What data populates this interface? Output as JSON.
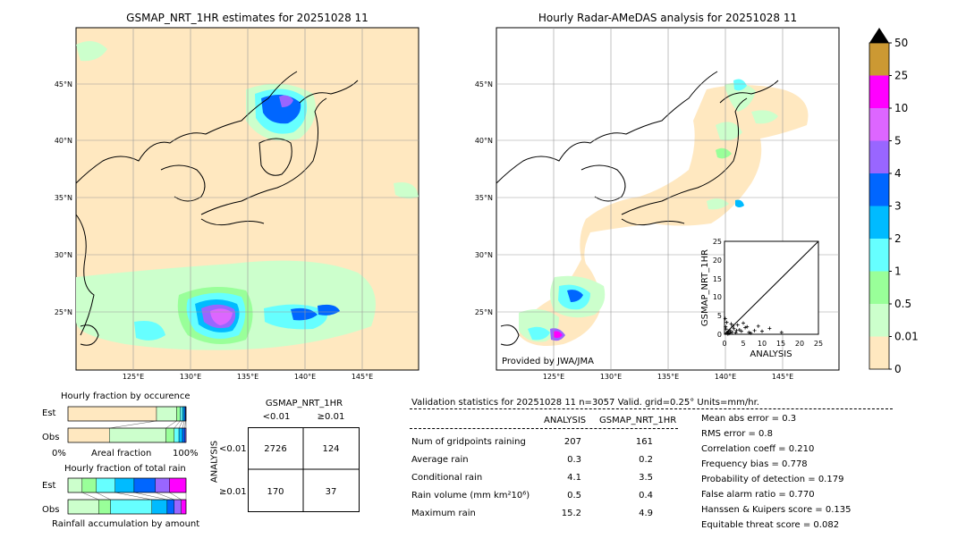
{
  "titles": {
    "gsmap": "GSMAP_NRT_1HR estimates for 20251028 11",
    "radar": "Hourly Radar-AMeDAS analysis for 20251028 11",
    "provided": "Provided by JWA/JMA"
  },
  "map_axes": {
    "lat_ticks": [
      "45°N",
      "40°N",
      "35°N",
      "30°N",
      "25°N"
    ],
    "lon_ticks": [
      "125°E",
      "130°E",
      "135°E",
      "140°E",
      "145°E"
    ]
  },
  "colorbar": {
    "labels": [
      "50",
      "25",
      "10",
      "5",
      "4",
      "3",
      "2",
      "1",
      "0.5",
      "0.01",
      "0"
    ],
    "colors": [
      "#cc9933",
      "#ff00ff",
      "#dd66ff",
      "#9966ff",
      "#0066ff",
      "#00bbff",
      "#66ffff",
      "#99ff99",
      "#ccffcc",
      "#ffe8c0"
    ],
    "over_color": "#000000"
  },
  "scatter": {
    "xlabel": "ANALYSIS",
    "ylabel": "GSMAP_NRT_1HR",
    "ticks": [
      "0",
      "5",
      "10",
      "15",
      "20",
      "25"
    ]
  },
  "fraction_occurrence": {
    "title": "Hourly fraction by occurence",
    "est_label": "Est",
    "obs_label": "Obs",
    "axis_left": "0%",
    "axis_mid": "Areal fraction",
    "axis_right": "100%"
  },
  "fraction_total": {
    "title": "Hourly fraction of total rain",
    "est_label": "Est",
    "obs_label": "Obs",
    "axis_label": "Rainfall accumulation by amount"
  },
  "contingency": {
    "title": "GSMAP_NRT_1HR",
    "col_lt": "<0.01",
    "col_ge": "≥0.01",
    "row_lt": "<0.01",
    "row_ge": "≥0.01",
    "ylabel": "ANALYSIS",
    "cells": [
      "2726",
      "124",
      "170",
      "37"
    ]
  },
  "validation": {
    "header": "Validation statistics for 20251028 11  n=3057 Valid. grid=0.25° Units=mm/hr.",
    "col_analysis": "ANALYSIS",
    "col_gsmap": "GSMAP_NRT_1HR",
    "rows": [
      {
        "label": "Num of gridpoints raining",
        "analysis": "207",
        "gsmap": "161"
      },
      {
        "label": "Average rain",
        "analysis": "0.3",
        "gsmap": "0.2"
      },
      {
        "label": "Conditional rain",
        "analysis": "4.1",
        "gsmap": "3.5"
      },
      {
        "label": "Rain volume (mm km²10⁶)",
        "analysis": "0.5",
        "gsmap": "0.4"
      },
      {
        "label": "Maximum rain",
        "analysis": "15.2",
        "gsmap": "4.9"
      }
    ],
    "scores": [
      "Mean abs error =    0.3",
      "RMS error =    0.8",
      "Correlation coeff =  0.210",
      "Frequency bias =  0.778",
      "Probability of detection =  0.179",
      "False alarm ratio =  0.770",
      "Hanssen & Kuipers score =  0.135",
      "Equitable threat score =  0.082"
    ]
  },
  "chart_data": [
    {
      "type": "scatter",
      "xlabel": "ANALYSIS",
      "ylabel": "GSMAP_NRT_1HR",
      "xlim": [
        0,
        25
      ],
      "ylim": [
        0,
        25
      ],
      "points": [
        [
          0.5,
          0.3
        ],
        [
          0.8,
          0.5
        ],
        [
          1.0,
          0.8
        ],
        [
          1.2,
          0.2
        ],
        [
          1.5,
          1.0
        ],
        [
          2.0,
          0.6
        ],
        [
          2.5,
          1.5
        ],
        [
          3.0,
          0.4
        ],
        [
          3.5,
          2.5
        ],
        [
          4.0,
          1.2
        ],
        [
          4.5,
          0.8
        ],
        [
          5.0,
          3.0
        ],
        [
          5.5,
          1.8
        ],
        [
          6.0,
          2.0
        ],
        [
          6.5,
          0.5
        ],
        [
          8.0,
          1.0
        ],
        [
          10.0,
          0.8
        ],
        [
          12.0,
          1.6
        ],
        [
          15.2,
          0.5
        ],
        [
          0.3,
          2.0
        ],
        [
          0.6,
          3.2
        ],
        [
          0.2,
          4.2
        ],
        [
          1.8,
          2.8
        ],
        [
          2.2,
          2.2
        ],
        [
          0.4,
          1.4
        ],
        [
          3.2,
          1.0
        ],
        [
          7.0,
          0.3
        ],
        [
          9.0,
          2.2
        ],
        [
          0.9,
          0.1
        ],
        [
          1.6,
          0.4
        ]
      ]
    },
    {
      "type": "bar",
      "title": "Hourly fraction by occurence",
      "categories": [
        "Est",
        "Obs"
      ],
      "series": [
        {
          "values": [
            0.75,
            0.35
          ]
        },
        {
          "values": [
            0.17,
            0.48
          ]
        },
        {
          "values": [
            0.03,
            0.07
          ]
        },
        {
          "values": [
            0.02,
            0.04
          ]
        },
        {
          "values": [
            0.015,
            0.03
          ]
        },
        {
          "values": [
            0.01,
            0.02
          ]
        },
        {
          "values": [
            0.005,
            0.01
          ]
        }
      ]
    },
    {
      "type": "bar",
      "title": "Hourly fraction of total rain",
      "categories": [
        "Est",
        "Obs"
      ],
      "series": [
        {
          "values": [
            0.12,
            0.26
          ]
        },
        {
          "values": [
            0.12,
            0.1
          ]
        },
        {
          "values": [
            0.16,
            0.35
          ]
        },
        {
          "values": [
            0.16,
            0.13
          ]
        },
        {
          "values": [
            0.18,
            0.06
          ]
        },
        {
          "values": [
            0.12,
            0.06
          ]
        },
        {
          "values": [
            0.14,
            0.04
          ]
        }
      ]
    }
  ]
}
